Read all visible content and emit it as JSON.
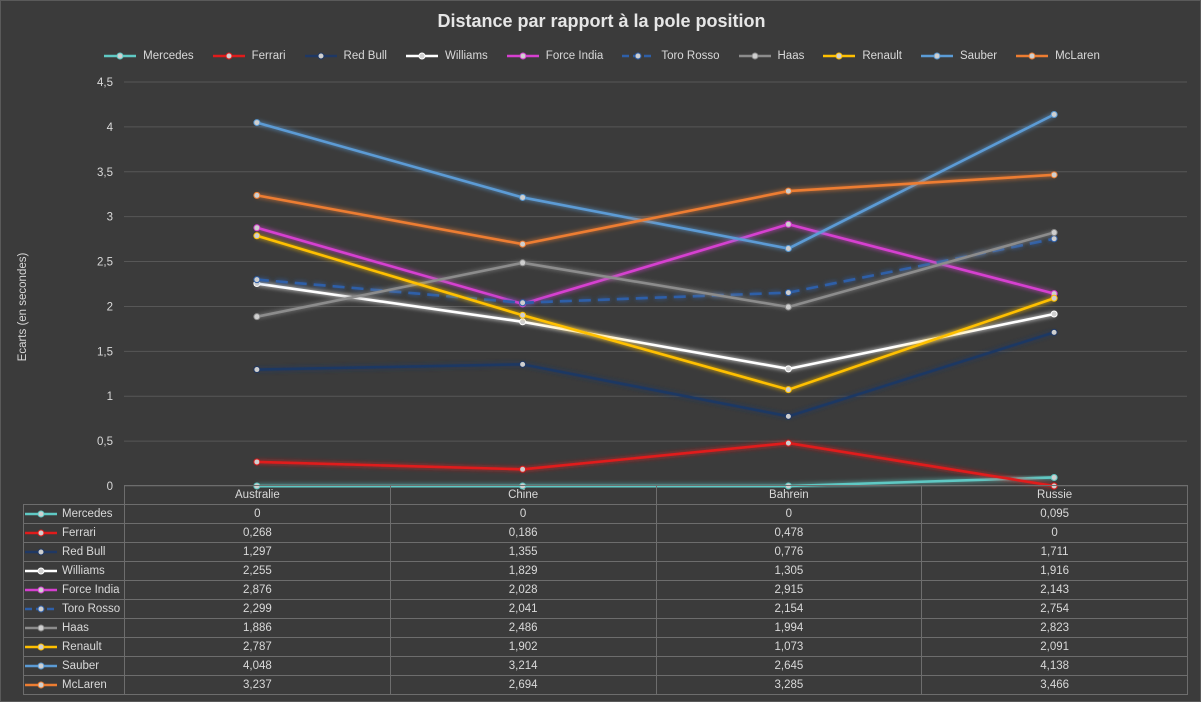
{
  "chart_data": {
    "type": "line",
    "title": "Distance par rapport à la pole position",
    "ylabel": "Ecarts (en secondes)",
    "xlabel": "",
    "categories": [
      "Australie",
      "Chine",
      "Bahrein",
      "Russie"
    ],
    "ylim": [
      0,
      4.5
    ],
    "yticks": [
      "0",
      "0,5",
      "1",
      "1,5",
      "2",
      "2,5",
      "3",
      "3,5",
      "4",
      "4,5"
    ],
    "grid": true,
    "legend_position": "top",
    "series": [
      {
        "name": "Mercedes",
        "color": "#5fc9c4",
        "dash": false,
        "values": [
          0,
          0,
          0,
          0.095
        ],
        "labels": [
          "0",
          "0",
          "0",
          "0,095"
        ]
      },
      {
        "name": "Ferrari",
        "color": "#e01b1b",
        "dash": false,
        "values": [
          0.268,
          0.186,
          0.478,
          0
        ],
        "labels": [
          "0,268",
          "0,186",
          "0,478",
          "0"
        ]
      },
      {
        "name": "Red Bull",
        "color": "#1f3864",
        "dash": false,
        "values": [
          1.297,
          1.355,
          0.776,
          1.711
        ],
        "labels": [
          "1,297",
          "1,355",
          "0,776",
          "1,711"
        ]
      },
      {
        "name": "Williams",
        "color": "#ffffff",
        "dash": false,
        "values": [
          2.255,
          1.829,
          1.305,
          1.916
        ],
        "labels": [
          "2,255",
          "1,829",
          "1,305",
          "1,916"
        ]
      },
      {
        "name": "Force India",
        "color": "#d63fd0",
        "dash": false,
        "values": [
          2.876,
          2.028,
          2.915,
          2.143
        ],
        "labels": [
          "2,876",
          "2,028",
          "2,915",
          "2,143"
        ]
      },
      {
        "name": "Toro Rosso",
        "color": "#2e5fa8",
        "dash": true,
        "values": [
          2.299,
          2.041,
          2.154,
          2.754
        ],
        "labels": [
          "2,299",
          "2,041",
          "2,154",
          "2,754"
        ]
      },
      {
        "name": "Haas",
        "color": "#8c8c8c",
        "dash": false,
        "values": [
          1.886,
          2.486,
          1.994,
          2.823
        ],
        "labels": [
          "1,886",
          "2,486",
          "1,994",
          "2,823"
        ]
      },
      {
        "name": "Renault",
        "color": "#ffc000",
        "dash": false,
        "values": [
          2.787,
          1.902,
          1.073,
          2.091
        ],
        "labels": [
          "2,787",
          "1,902",
          "1,073",
          "2,091"
        ]
      },
      {
        "name": "Sauber",
        "color": "#5b9bd5",
        "dash": false,
        "values": [
          4.048,
          3.214,
          2.645,
          4.138
        ],
        "labels": [
          "4,048",
          "3,214",
          "2,645",
          "4,138"
        ]
      },
      {
        "name": "McLaren",
        "color": "#ed7d31",
        "dash": false,
        "values": [
          3.237,
          2.694,
          3.285,
          3.466
        ],
        "labels": [
          "3,237",
          "2,694",
          "3,285",
          "3,466"
        ]
      }
    ]
  }
}
